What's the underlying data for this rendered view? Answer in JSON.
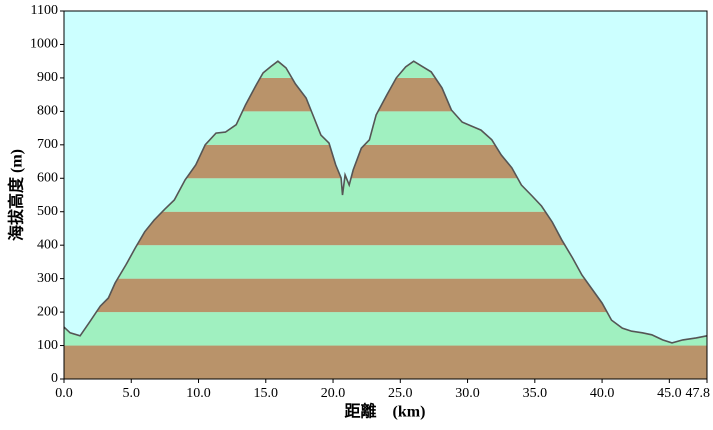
{
  "chart_data": {
    "type": "area",
    "xlabel": "距離　(km)",
    "ylabel": "海拔高度 (m)",
    "x": [
      0,
      0.45,
      1.2,
      1.9,
      2.7,
      3.3,
      3.8,
      4.6,
      5.3,
      6.0,
      6.7,
      7.5,
      8.2,
      9.0,
      9.8,
      10.5,
      11.3,
      12.0,
      12.8,
      13.5,
      14.3,
      14.8,
      15.4,
      15.9,
      16.5,
      17.2,
      18.0,
      18.5,
      19.1,
      19.7,
      20.2,
      20.6,
      20.7,
      20.9,
      21.2,
      21.5,
      22.1,
      22.7,
      23.2,
      24.0,
      24.7,
      25.4,
      26.0,
      26.6,
      27.3,
      28.1,
      28.8,
      29.6,
      30.3,
      31.0,
      31.8,
      32.5,
      33.3,
      34.0,
      34.8,
      35.5,
      36.3,
      37.0,
      37.8,
      38.5,
      39.3,
      40.0,
      40.7,
      41.5,
      42.2,
      43.0,
      43.7,
      44.5,
      45.2,
      46.0,
      47.0,
      47.8
    ],
    "values": [
      155,
      138,
      129,
      170,
      218,
      242,
      287,
      341,
      392,
      440,
      475,
      508,
      535,
      595,
      640,
      700,
      735,
      738,
      760,
      820,
      880,
      915,
      935,
      950,
      930,
      882,
      840,
      789,
      729,
      705,
      640,
      601,
      550,
      610,
      580,
      625,
      690,
      715,
      789,
      849,
      900,
      933,
      950,
      935,
      918,
      870,
      804,
      768,
      756,
      744,
      715,
      670,
      631,
      580,
      547,
      517,
      469,
      416,
      362,
      311,
      266,
      227,
      176,
      152,
      143,
      138,
      132,
      117,
      108,
      117,
      123,
      129
    ],
    "line_color": "#555555",
    "band_colors": [
      "#b9936a",
      "#a0f0c0"
    ],
    "background": "#ccffff",
    "xlim": [
      0,
      47.8
    ],
    "xticks": [
      {
        "value": 0,
        "label": "0.0"
      },
      {
        "value": 5,
        "label": "5.0"
      },
      {
        "value": 10,
        "label": "10.0"
      },
      {
        "value": 15,
        "label": "15.0"
      },
      {
        "value": 20,
        "label": "20.0"
      },
      {
        "value": 25,
        "label": "25.0"
      },
      {
        "value": 30,
        "label": "30.0"
      },
      {
        "value": 35,
        "label": "35.0"
      },
      {
        "value": 40,
        "label": "40.0"
      },
      {
        "value": 45,
        "label": "45.0"
      },
      47.8
    ],
    "ylim": [
      0,
      1100
    ],
    "yticks": [
      0,
      100,
      200,
      300,
      400,
      500,
      600,
      700,
      800,
      900,
      1000,
      1100
    ]
  }
}
